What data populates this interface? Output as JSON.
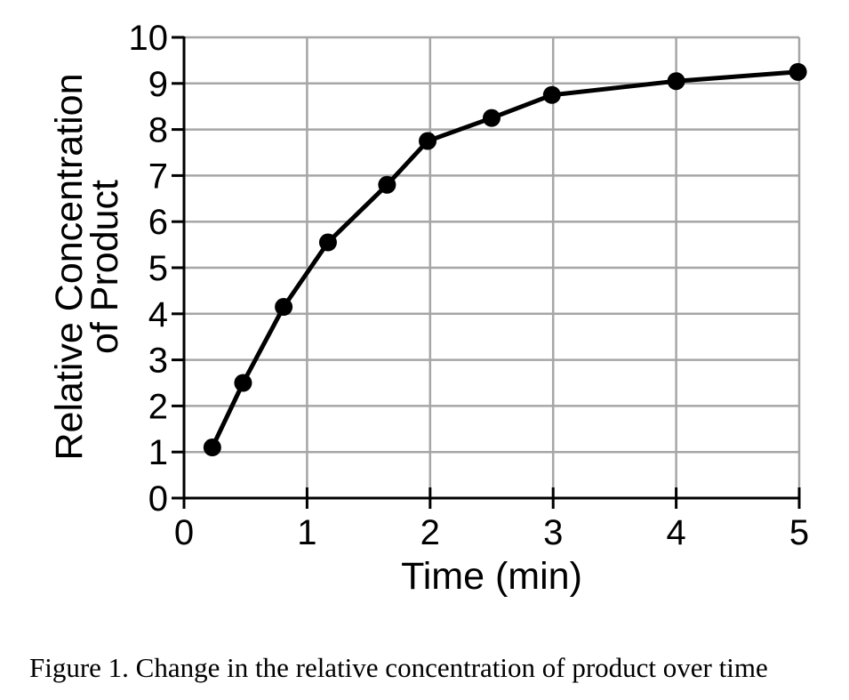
{
  "chart_data": {
    "type": "line",
    "title": "",
    "xlabel": "Time (min)",
    "ylabel": [
      "Relative Concentration",
      "of Product"
    ],
    "xlim": [
      0,
      5
    ],
    "ylim": [
      0,
      10
    ],
    "xticks": [
      0,
      1,
      2,
      3,
      4,
      5
    ],
    "yticks": [
      0,
      1,
      2,
      3,
      4,
      5,
      6,
      7,
      8,
      9,
      10
    ],
    "grid": true,
    "series": [
      {
        "name": "Relative concentration of product",
        "color": "#000000",
        "x": [
          0.23,
          0.48,
          0.81,
          1.17,
          1.65,
          1.98,
          2.5,
          2.99,
          4.0,
          4.99
        ],
        "y": [
          1.1,
          2.5,
          4.15,
          5.55,
          6.8,
          7.75,
          8.25,
          8.75,
          9.05,
          9.25
        ]
      }
    ]
  },
  "caption": "Figure 1. Change in the relative concentration of product over time",
  "colors": {
    "grid": "#a6a6a6",
    "axis": "#000000",
    "line": "#000000",
    "background": "#ffffff"
  }
}
